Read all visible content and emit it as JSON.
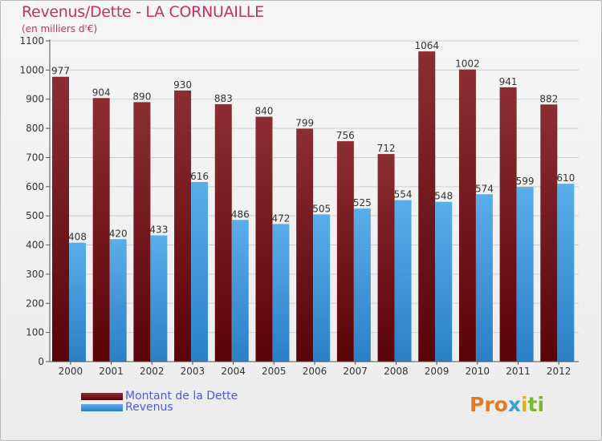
{
  "title": "Revenus/Dette - LA CORNUAILLE",
  "subtitle": "(en milliers d'€)",
  "logo_text": "Proxiti",
  "colors": {
    "dette": "#6e1015",
    "revenus": "#3f94d8",
    "title": "#c0316a",
    "legend_text": "#4a5be0"
  },
  "legend": [
    {
      "label": "Montant de la Dette",
      "color": "#6e1015"
    },
    {
      "label": "Revenus",
      "color": "#3f94d8"
    }
  ],
  "chart_data": {
    "type": "bar",
    "title": "Revenus/Dette - LA CORNUAILLE",
    "subtitle": "(en milliers d'€)",
    "categories": [
      "2000",
      "2001",
      "2002",
      "2003",
      "2004",
      "2005",
      "2006",
      "2007",
      "2008",
      "2009",
      "2010",
      "2011",
      "2012"
    ],
    "series": [
      {
        "name": "Montant de la Dette",
        "values": [
          977,
          904,
          890,
          930,
          883,
          840,
          799,
          756,
          712,
          1064,
          1002,
          941,
          882
        ]
      },
      {
        "name": "Revenus",
        "values": [
          408,
          420,
          433,
          616,
          486,
          472,
          505,
          525,
          554,
          548,
          574,
          599,
          610
        ]
      }
    ],
    "ylim": [
      0,
      1100
    ],
    "yticks": [
      0,
      100,
      200,
      300,
      400,
      500,
      600,
      700,
      800,
      900,
      1000,
      1100
    ],
    "grid": true,
    "legend_position": "bottom-left"
  }
}
